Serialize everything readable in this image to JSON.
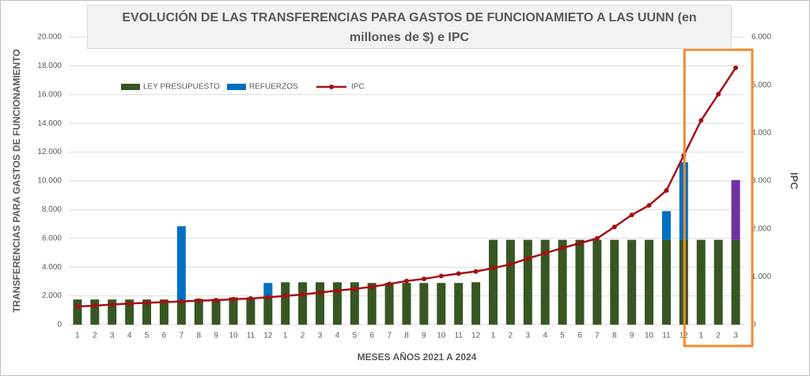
{
  "chart_data": {
    "type": "bar",
    "title": "EVOLUCIÓN DE LAS TRANSFERENCIAS PARA GASTOS DE FUNCIONAMIETO A LAS UUNN (en millones de $) e IPC",
    "xlabel": "MESES AÑOS 2021  A 2024",
    "ylabel": "TRANSFERENCIAS PARA GASTOS DE FUNCIONAMIENTO",
    "y2label": "IPC",
    "categories": [
      "1",
      "2",
      "3",
      "4",
      "5",
      "6",
      "7",
      "8",
      "9",
      "10",
      "11",
      "12",
      "1",
      "2",
      "3",
      "4",
      "5",
      "6",
      "7",
      "8",
      "9",
      "10",
      "11",
      "12",
      "1",
      "2",
      "3",
      "4",
      "5",
      "6",
      "7",
      "8",
      "9",
      "10",
      "11",
      "12",
      "1",
      "2",
      "3"
    ],
    "series": [
      {
        "name": "LEY PRESUPUESTO",
        "color": "#375623",
        "stack": true,
        "values": [
          1750,
          1750,
          1750,
          1750,
          1750,
          1750,
          1750,
          1800,
          1800,
          1900,
          1900,
          2000,
          2950,
          2950,
          2950,
          2950,
          2950,
          2900,
          2900,
          2900,
          2900,
          2900,
          2900,
          2950,
          5900,
          5900,
          5900,
          5900,
          5900,
          5900,
          5900,
          5900,
          5900,
          5900,
          5900,
          5900,
          5900,
          5900,
          5900
        ]
      },
      {
        "name": "REFUERZOS",
        "color": "#0070c0",
        "stack": true,
        "point_colors": {
          "38": "#7030a0"
        },
        "values": [
          0,
          0,
          0,
          0,
          0,
          0,
          5100,
          0,
          0,
          0,
          0,
          900,
          0,
          0,
          0,
          0,
          0,
          0,
          0,
          0,
          0,
          0,
          0,
          0,
          0,
          0,
          0,
          0,
          0,
          0,
          0,
          0,
          0,
          0,
          2000,
          5400,
          0,
          0,
          4150
        ]
      },
      {
        "name": "IPC",
        "color": "#a50f15",
        "type": "line",
        "axis": "y2",
        "values": [
          380,
          395,
          420,
          440,
          455,
          470,
          485,
          500,
          510,
          530,
          545,
          570,
          600,
          630,
          670,
          710,
          745,
          790,
          850,
          910,
          955,
          1015,
          1065,
          1110,
          1180,
          1260,
          1380,
          1490,
          1600,
          1700,
          1800,
          2040,
          2290,
          2490,
          2800,
          3530,
          4260,
          4810,
          5360
        ]
      }
    ],
    "ylim": [
      0,
      20000
    ],
    "yticks": [
      0,
      {
        "value": 2000,
        "label": "2.000"
      },
      {
        "value": 4000,
        "label": "4.000"
      },
      {
        "value": 6000,
        "label": "6.000"
      },
      {
        "value": 8000,
        "label": "8.000"
      },
      {
        "value": 10000,
        "label": "10.000"
      },
      {
        "value": 12000,
        "label": "12.000"
      },
      {
        "value": 14000,
        "label": "14.000"
      },
      {
        "value": 16000,
        "label": "16.000"
      },
      {
        "value": 18000,
        "label": "18.000"
      },
      {
        "value": 20000,
        "label": "20.000"
      }
    ],
    "y2lim": [
      0,
      6000
    ],
    "y2ticks": [
      0,
      {
        "value": 1000,
        "label": "1.000"
      },
      {
        "value": 2000,
        "label": "2.000"
      },
      {
        "value": 3000,
        "label": "3.000"
      },
      {
        "value": 4000,
        "label": "4.000"
      },
      {
        "value": 5000,
        "label": "5.000"
      },
      {
        "value": 6000,
        "label": "6.000"
      }
    ],
    "grid": true,
    "legend": "top-left",
    "highlight": {
      "from": 36,
      "to": 38,
      "color": "#f08a2c"
    }
  }
}
